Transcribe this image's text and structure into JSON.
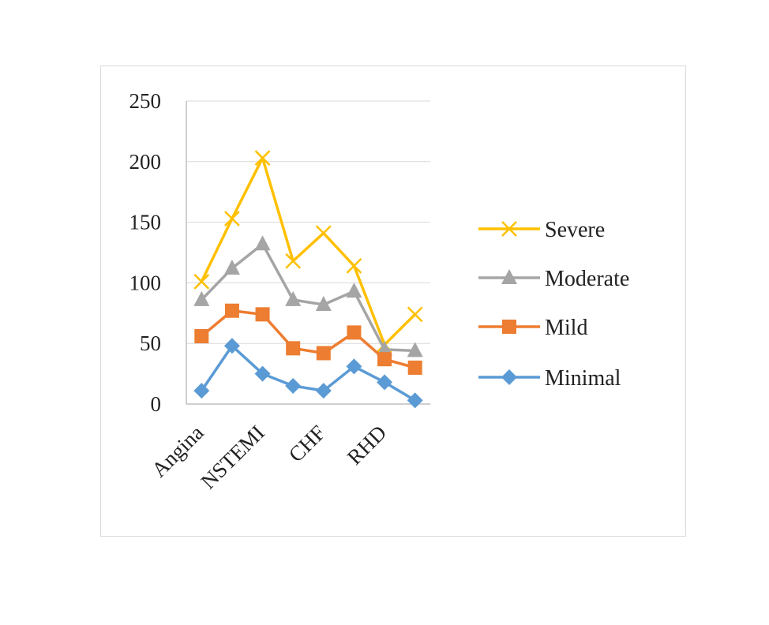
{
  "chart_data": {
    "type": "line",
    "title": "",
    "xlabel": "",
    "ylabel": "",
    "ylim": [
      0,
      250
    ],
    "yticks": [
      0,
      50,
      100,
      150,
      200,
      250
    ],
    "grid": true,
    "legend_position": "right",
    "categories": [
      "Angina",
      "",
      "NSTEMI",
      "",
      "CHF",
      "",
      "RHD",
      ""
    ],
    "series": [
      {
        "name": "Severe",
        "values": [
          101,
          153,
          203,
          118,
          141,
          114,
          49,
          74
        ],
        "color": "#ffc000",
        "marker": "x"
      },
      {
        "name": "Moderate",
        "values": [
          86,
          112,
          132,
          86,
          82,
          93,
          45,
          44
        ],
        "color": "#a5a5a5",
        "marker": "triangle"
      },
      {
        "name": "Mild",
        "values": [
          56,
          77,
          74,
          46,
          42,
          59,
          37,
          30
        ],
        "color": "#ed7d31",
        "marker": "square"
      },
      {
        "name": "Minimal",
        "values": [
          11,
          48,
          25,
          15,
          11,
          31,
          18,
          3
        ],
        "color": "#5b9bd5",
        "marker": "diamond"
      }
    ]
  }
}
